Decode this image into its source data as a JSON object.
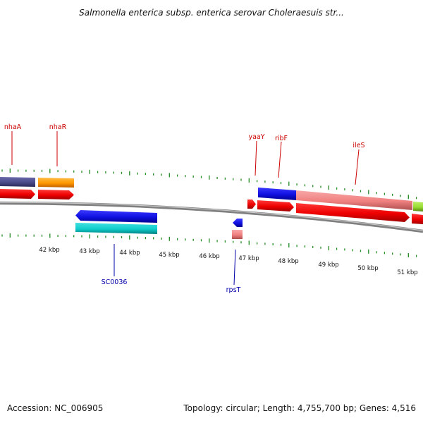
{
  "title": "Salmonella enterica subsp. enterica serovar Choleraesuis str...",
  "accession": "Accession: NC_006905",
  "topology": "Topology: circular; Length: 4,755,700 bp; Genes: 4,516",
  "scale_labels": [
    "42 kbp",
    "43 kbp",
    "44 kbp",
    "45 kbp",
    "46 kbp",
    "47 kbp",
    "48 kbp",
    "49 kbp",
    "50 kbp",
    "51 kbp"
  ],
  "top_gene_labels": [
    "nhaA",
    "nhaR",
    "yaaY",
    "ribF",
    "ileS"
  ],
  "bottom_gene_labels": [
    "SC0036",
    "rpsT"
  ],
  "colors": {
    "backbone": "#808080",
    "tick": "#228b22",
    "top_label": "#cc0000",
    "bottom_label": "#0000aa",
    "cds": "#ee1111",
    "blue": "#1a1ae6",
    "cyan": "#1acccc",
    "salmon": "#f08080",
    "slate": "#4a4a8a",
    "orange": "#ff9900",
    "lime": "#99dd33"
  }
}
